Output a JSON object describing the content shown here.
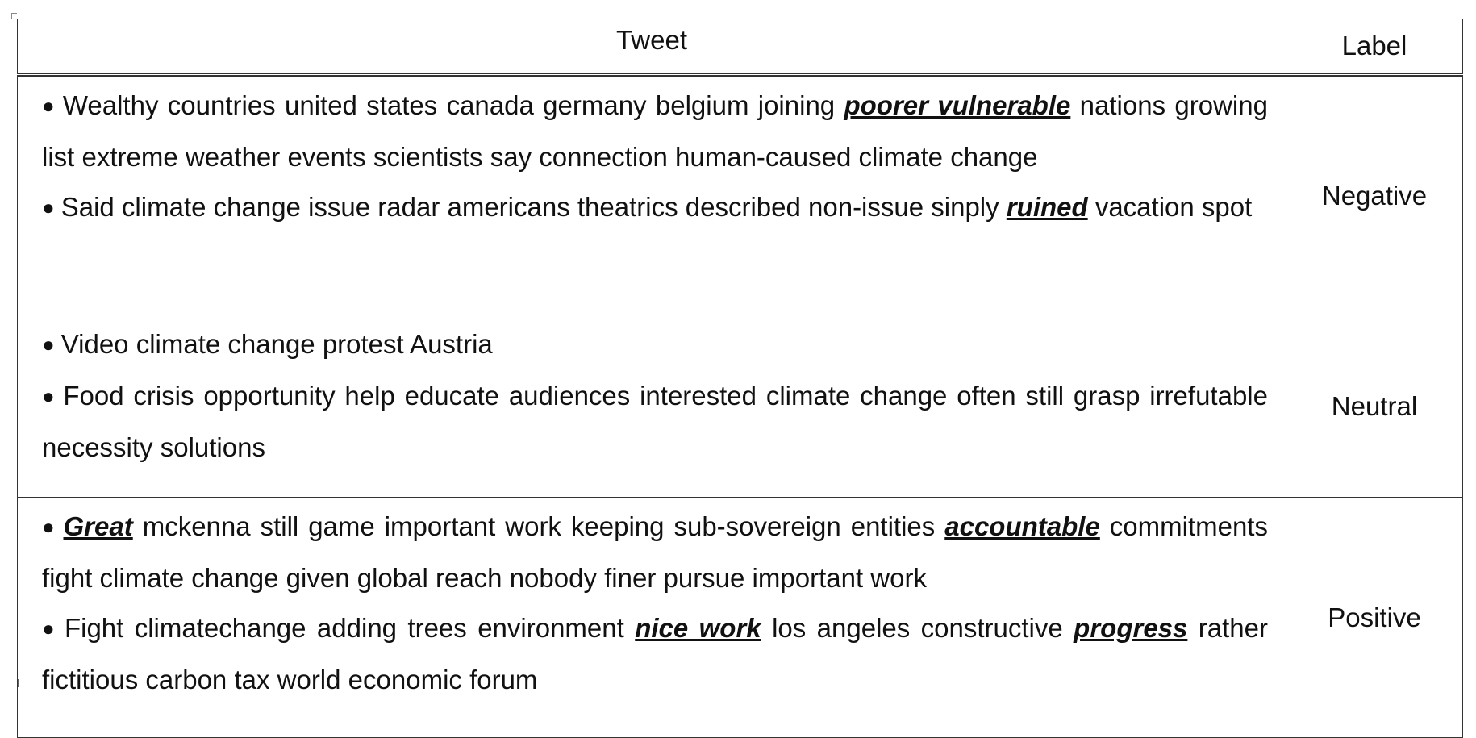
{
  "table": {
    "headers": {
      "tweet": "Tweet",
      "label": "Label"
    },
    "rows": [
      {
        "label": "Negative",
        "bullets": [
          {
            "parts": [
              {
                "t": "Wealthy countries united states canada germany belgium joining ",
                "em": false
              },
              {
                "t": "poorer vulnerable",
                "em": true
              },
              {
                "t": " nations growing list extreme weather events scientists say connection human-caused climate change",
                "em": false
              }
            ]
          },
          {
            "parts": [
              {
                "t": "Said climate change issue radar americans theatrics described non-issue sinply ",
                "em": false
              },
              {
                "t": "ruined",
                "em": true
              },
              {
                "t": " vacation spot",
                "em": false
              }
            ]
          }
        ]
      },
      {
        "label": "Neutral",
        "bullets": [
          {
            "parts": [
              {
                "t": "Video climate change protest Austria",
                "em": false
              }
            ]
          },
          {
            "parts": [
              {
                "t": "Food crisis opportunity help educate audiences interested climate change often still grasp irrefutable necessity solutions",
                "em": false
              }
            ]
          }
        ]
      },
      {
        "label": "Positive",
        "bullets": [
          {
            "parts": [
              {
                "t": "Great",
                "em": true
              },
              {
                "t": " mckenna still game important work keeping sub-sovereign entities ",
                "em": false
              },
              {
                "t": "accountable",
                "em": true
              },
              {
                "t": " commitments fight climate change given global reach nobody finer pursue important work",
                "em": false
              }
            ]
          },
          {
            "parts": [
              {
                "t": "Fight climatechange adding trees environment ",
                "em": false
              },
              {
                "t": "nice work",
                "em": true
              },
              {
                "t": " los angeles constructive ",
                "em": false
              },
              {
                "t": "progress",
                "em": true
              },
              {
                "t": " rather fictitious carbon tax world economic forum",
                "em": false
              }
            ]
          }
        ]
      }
    ]
  }
}
